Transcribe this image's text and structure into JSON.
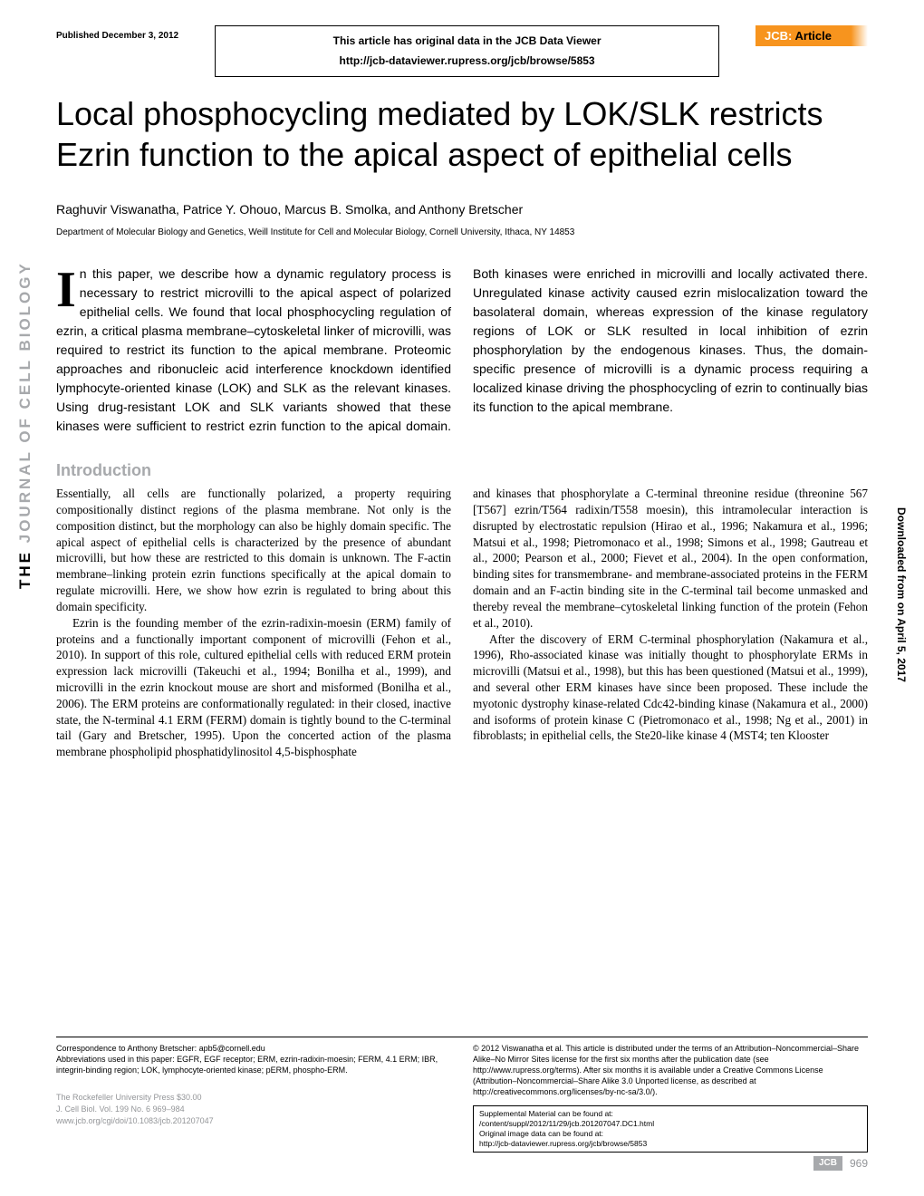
{
  "header": {
    "pub_date": "Published December 3, 2012",
    "data_viewer_line1": "This article has original data in the JCB Data Viewer",
    "data_viewer_line2": "http://jcb-dataviewer.rupress.org/jcb/browse/5853",
    "badge_prefix": "JCB:",
    "badge_type": "Article"
  },
  "title": "Local phosphocycling mediated by LOK/SLK restricts Ezrin function to the apical aspect of epithelial cells",
  "authors": "Raghuvir Viswanatha, Patrice Y. Ohouo, Marcus B. Smolka, and Anthony Bretscher",
  "affiliation": "Department of Molecular Biology and Genetics, Weill Institute for Cell and Molecular Biology, Cornell University, Ithaca, NY 14853",
  "abstract": {
    "drop": "I",
    "text": "n this paper, we describe how a dynamic regulatory process is necessary to restrict microvilli to the apical aspect of polarized epithelial cells. We found that local phosphocycling regulation of ezrin, a critical plasma membrane–cytoskeletal linker of microvilli, was required to restrict its function to the apical membrane. Proteomic approaches and ribonucleic acid interference knockdown identified lymphocyte-oriented kinase (LOK) and SLK as the relevant kinases. Using drug-resistant LOK and SLK variants showed that these kinases were sufficient to restrict ezrin function to the apical domain. Both kinases were enriched in microvilli and locally activated there. Unregulated kinase activity caused ezrin mislocalization toward the basolateral domain, whereas expression of the kinase regulatory regions of LOK or SLK resulted in local inhibition of ezrin phosphorylation by the endogenous kinases. Thus, the domain-specific presence of microvilli is a dynamic process requiring a localized kinase driving the phosphocycling of ezrin to continually bias its function to the apical membrane."
  },
  "intro_heading": "Introduction",
  "body": {
    "p1": "Essentially, all cells are functionally polarized, a property requiring compositionally distinct regions of the plasma membrane. Not only is the composition distinct, but the morphology can also be highly domain specific. The apical aspect of epithelial cells is characterized by the presence of abundant microvilli, but how these are restricted to this domain is unknown. The F-actin membrane–linking protein ezrin functions specifically at the apical domain to regulate microvilli. Here, we show how ezrin is regulated to bring about this domain specificity.",
    "p2": "Ezrin is the founding member of the ezrin-radixin-moesin (ERM) family of proteins and a functionally important component of microvilli (Fehon et al., 2010). In support of this role, cultured epithelial cells with reduced ERM protein expression lack microvilli (Takeuchi et al., 1994; Bonilha et al., 1999), and microvilli in the ezrin knockout mouse are short and misformed (Bonilha et al., 2006). The ERM proteins are conformationally regulated: in their closed, inactive state, the N-terminal 4.1 ERM (FERM) domain is tightly bound to the C-terminal tail (Gary and Bretscher, 1995). Upon the concerted action of the plasma membrane phospholipid phosphatidylinositol 4,5-bisphosphate",
    "p3": "and kinases that phosphorylate a C-terminal threonine residue (threonine 567 [T567] ezrin/T564 radixin/T558 moesin), this intramolecular interaction is disrupted by electrostatic repulsion (Hirao et al., 1996; Nakamura et al., 1996; Matsui et al., 1998; Pietromonaco et al., 1998; Simons et al., 1998; Gautreau et al., 2000; Pearson et al., 2000; Fievet et al., 2004). In the open conformation, binding sites for transmembrane- and membrane-associated proteins in the FERM domain and an F-actin binding site in the C-terminal tail become unmasked and thereby reveal the membrane–cytoskeletal linking function of the protein (Fehon et al., 2010).",
    "p4": "After the discovery of ERM C-terminal phosphorylation (Nakamura et al., 1996), Rho-associated kinase was initially thought to phosphorylate ERMs in microvilli (Matsui et al., 1998), but this has been questioned (Matsui et al., 1999), and several other ERM kinases have since been proposed. These include the myotonic dystrophy kinase-related Cdc42-binding kinase (Nakamura et al., 2000) and isoforms of protein kinase C (Pietromonaco et al., 1998; Ng et al., 2001) in fibroblasts; in epithelial cells, the Ste20-like kinase 4 (MST4; ten Klooster"
  },
  "sidebar": {
    "the": "THE",
    "rest": "JOURNAL OF CELL BIOLOGY"
  },
  "right_sidebar": "Downloaded from on April 5, 2017",
  "footer": {
    "correspondence": "Correspondence to Anthony Bretscher: apb5@cornell.edu",
    "abbreviations": "Abbreviations used in this paper: EGFR, EGF receptor; ERM, ezrin-radixin-moesin; FERM, 4.1 ERM; IBR, integrin-binding region; LOK, lymphocyte-oriented kinase; pERM, phospho-ERM.",
    "copyright": "© 2012 Viswanatha et al. This article is distributed under the terms of an Attribution–Noncommercial–Share Alike–No Mirror Sites license for the first six months after the publication date (see http://www.rupress.org/terms). After six months it is available under a Creative Commons License (Attribution–Noncommercial–Share Alike 3.0 Unported license, as described at http://creativecommons.org/licenses/by-nc-sa/3.0/).",
    "suppl1": "Supplemental Material can be found at:",
    "suppl2": "/content/suppl/2012/11/29/jcb.201207047.DC1.html",
    "suppl3": "Original image data can be found at:",
    "suppl4": "http://jcb-dataviewer.rupress.org/jcb/browse/5853",
    "press1": "The Rockefeller University Press   $30.00",
    "press2": "J. Cell Biol. Vol. 199 No. 6   969–984",
    "press3": "www.jcb.org/cgi/doi/10.1083/jcb.201207047",
    "jcb": "JCB",
    "page": "969"
  },
  "colors": {
    "accent_orange": "#f7941e",
    "gray_text": "#a7a9ac",
    "footer_gray": "#939598"
  }
}
